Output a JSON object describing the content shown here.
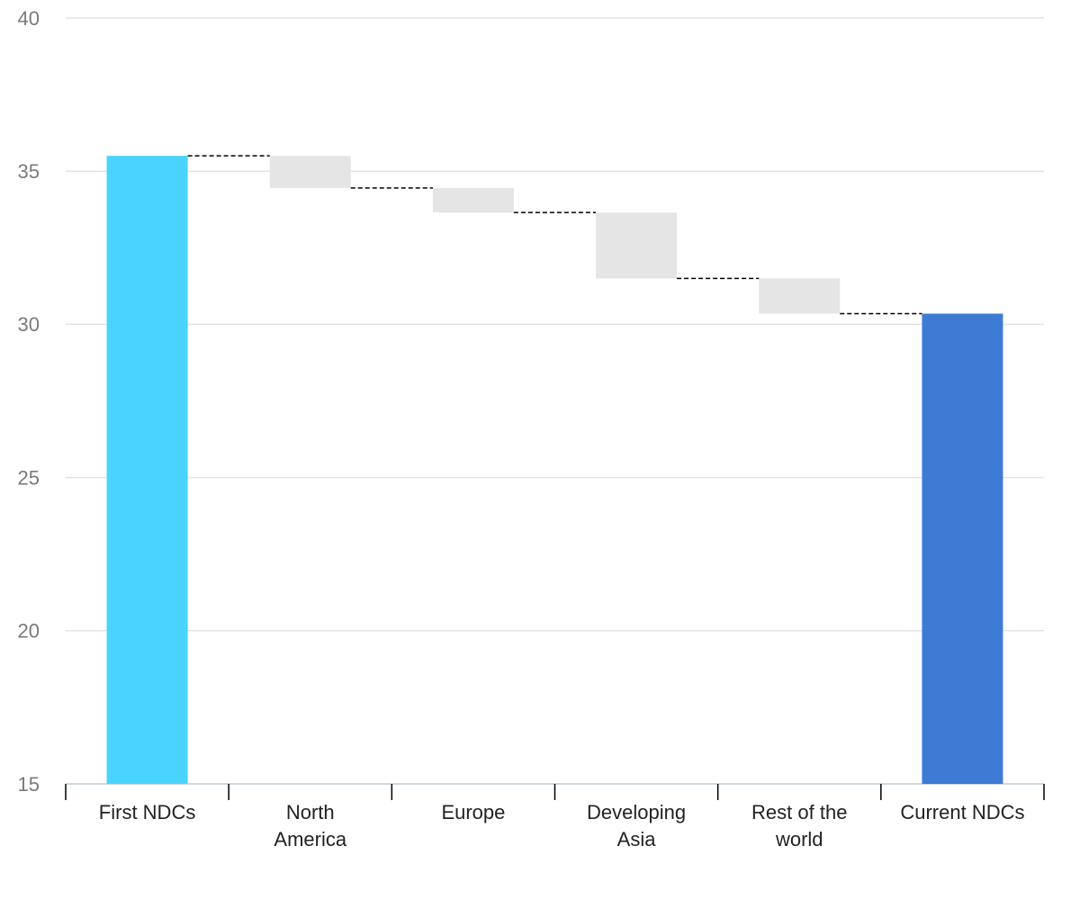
{
  "chart_data": {
    "type": "bar",
    "subtype": "waterfall",
    "title": "",
    "xlabel": "",
    "ylabel": "",
    "ylim": [
      15,
      40
    ],
    "yticks": [
      15,
      20,
      25,
      30,
      35,
      40
    ],
    "grid": true,
    "legend": "none",
    "categories": [
      [
        "First NDCs"
      ],
      [
        "North",
        "America"
      ],
      [
        "Europe"
      ],
      [
        "Developing",
        "Asia"
      ],
      [
        "Rest of the",
        "world"
      ],
      [
        "Current NDCs"
      ]
    ],
    "bars": [
      {
        "kind": "total",
        "start": 15,
        "end": 35.5
      },
      {
        "kind": "change",
        "start": 35.5,
        "end": 34.45
      },
      {
        "kind": "change",
        "start": 34.45,
        "end": 33.65
      },
      {
        "kind": "change",
        "start": 33.65,
        "end": 31.5
      },
      {
        "kind": "change",
        "start": 31.5,
        "end": 30.35
      },
      {
        "kind": "total",
        "start": 15,
        "end": 30.35
      }
    ],
    "colors": {
      "first_total": "#48d4ff",
      "current_total": "#3e7bd5",
      "change": "#e5e5e5",
      "grid": "#e1e4e8",
      "axis": "#cfd8e0",
      "connector": "#000000"
    }
  }
}
